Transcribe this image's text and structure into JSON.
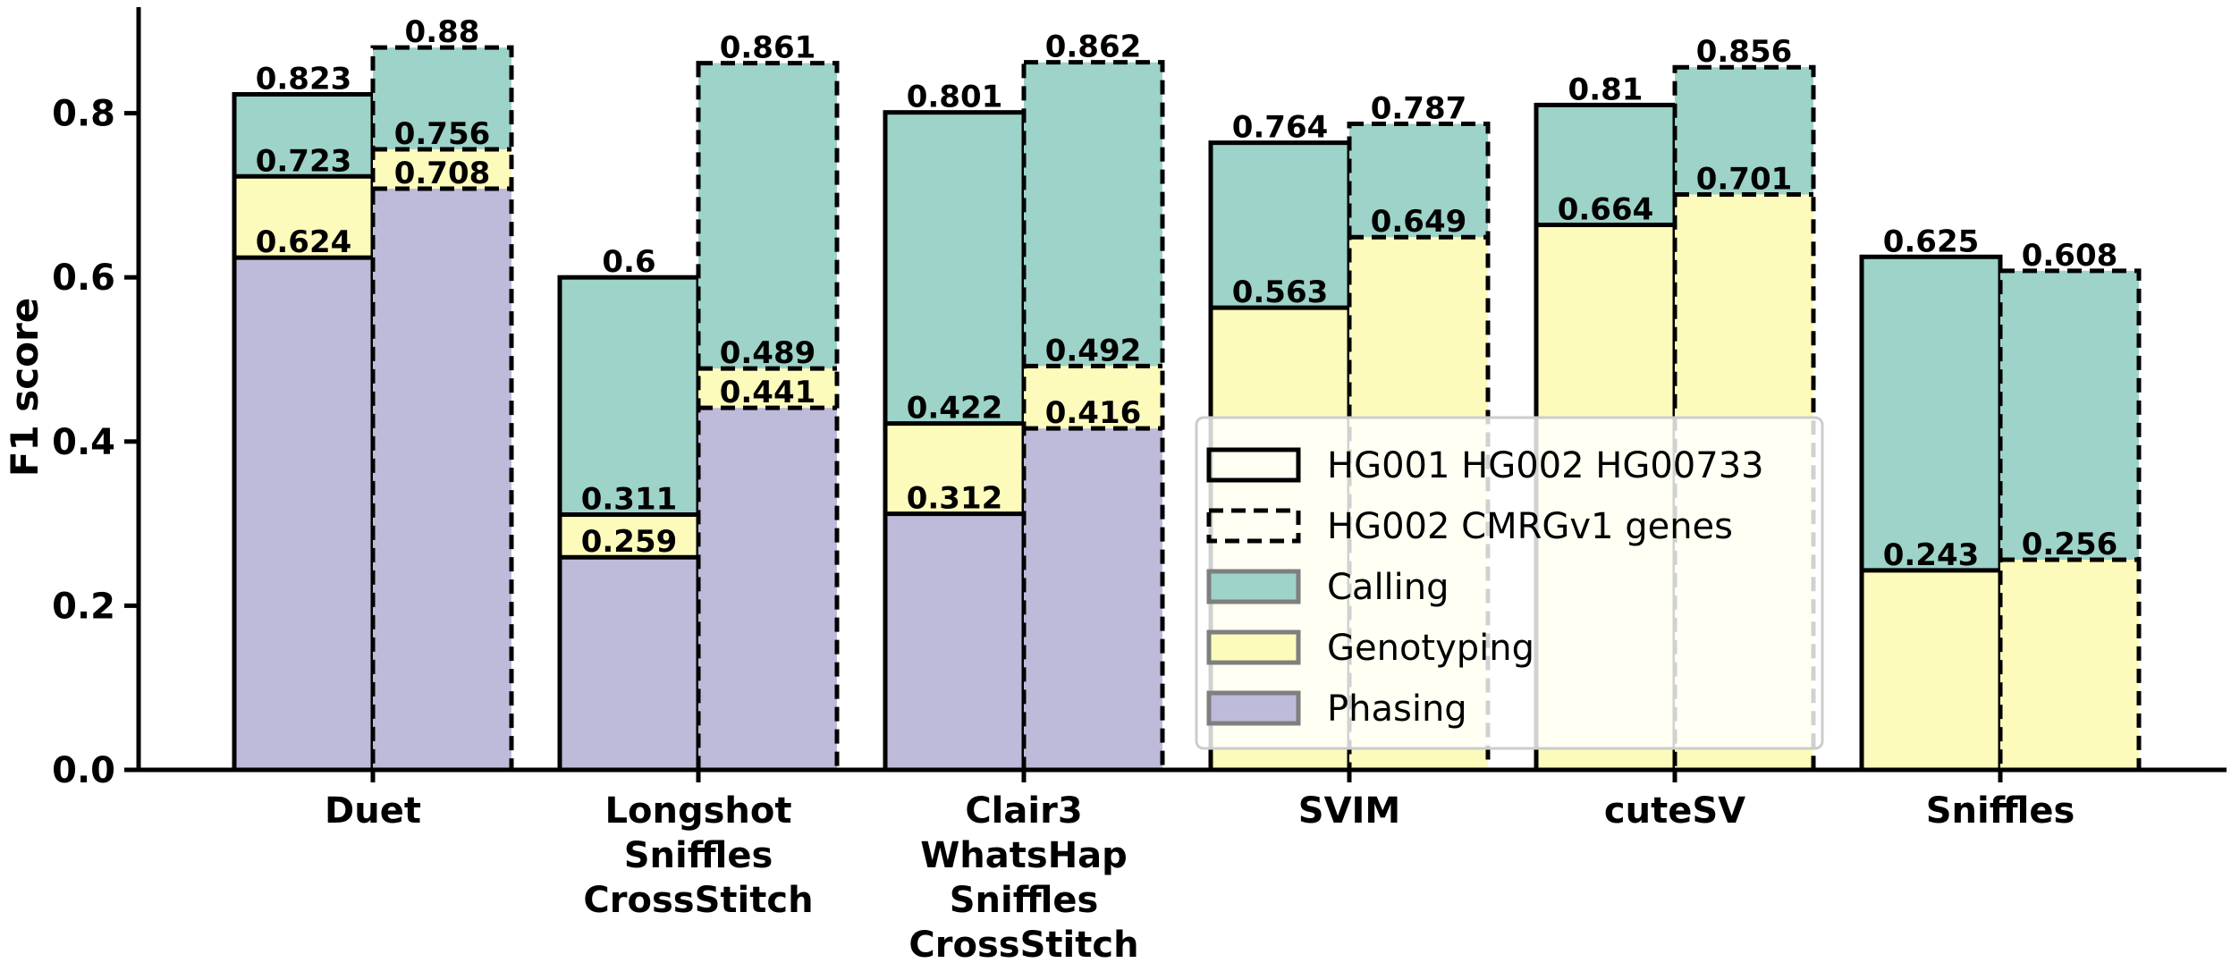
{
  "chart_data": {
    "type": "bar",
    "subtype": "grouped stacked bar (overlapping segments)",
    "ylabel": "F1 score",
    "xlabel": "",
    "ylim": [
      0,
      0.93
    ],
    "yticks": [
      "0.0",
      "0.2",
      "0.4",
      "0.6",
      "0.8"
    ],
    "ytick_values": [
      0,
      0.2,
      0.4,
      0.6,
      0.8
    ],
    "grid": false,
    "legend_position": "center-right",
    "categories": [
      [
        "Duet"
      ],
      [
        "Longshot",
        "Sniffles",
        "CrossStitch"
      ],
      [
        "Clair3",
        "WhatsHap",
        "Sniffles",
        "CrossStitch"
      ],
      [
        "SVIM"
      ],
      [
        "cuteSV"
      ],
      [
        "Sniffles"
      ]
    ],
    "groups": [
      {
        "name": "HG001 HG002 HG00733",
        "line_style": "solid",
        "calling": [
          0.823,
          0.6,
          0.801,
          0.764,
          0.81,
          0.625
        ],
        "genotyping": [
          0.723,
          0.311,
          0.422,
          0.563,
          0.664,
          0.243
        ],
        "phasing": [
          0.624,
          0.259,
          0.312,
          null,
          null,
          null
        ],
        "labels": {
          "calling": [
            "0.823",
            "0.6",
            "0.801",
            "0.764",
            "0.81",
            "0.625"
          ],
          "genotyping": [
            "0.723",
            "0.311",
            "0.422",
            "0.563",
            "0.664",
            "0.243"
          ],
          "phasing": [
            "0.624",
            "0.259",
            "0.312",
            null,
            null,
            null
          ]
        }
      },
      {
        "name": "HG002 CMRGv1 genes",
        "line_style": "dashed",
        "calling": [
          0.88,
          0.861,
          0.862,
          0.787,
          0.856,
          0.608
        ],
        "genotyping": [
          0.756,
          0.489,
          0.492,
          0.649,
          0.701,
          0.256
        ],
        "phasing": [
          0.708,
          0.441,
          0.416,
          null,
          null,
          null
        ],
        "labels": {
          "calling": [
            "0.88",
            "0.861",
            "0.862",
            "0.787",
            "0.856",
            "0.608"
          ],
          "genotyping": [
            "0.756",
            "0.489",
            "0.492",
            "0.649",
            "0.701",
            "0.256"
          ],
          "phasing": [
            "0.708",
            "0.441",
            "0.416",
            null,
            null,
            null
          ]
        }
      }
    ],
    "legend": [
      {
        "label": "HG001 HG002 HG00733",
        "kind": "solid-outline"
      },
      {
        "label": "HG002 CMRGv1 genes",
        "kind": "dashed-outline"
      },
      {
        "label": "Calling",
        "kind": "fill",
        "color": "#9dd3c8"
      },
      {
        "label": "Genotyping",
        "kind": "fill",
        "color": "#fdfbbb"
      },
      {
        "label": "Phasing",
        "kind": "fill",
        "color": "#bdbbd9"
      }
    ],
    "colors": {
      "calling": "#9dd3c8",
      "genotyping": "#fdfbbb",
      "phasing": "#bdbbd9",
      "outline": "#000000"
    }
  }
}
